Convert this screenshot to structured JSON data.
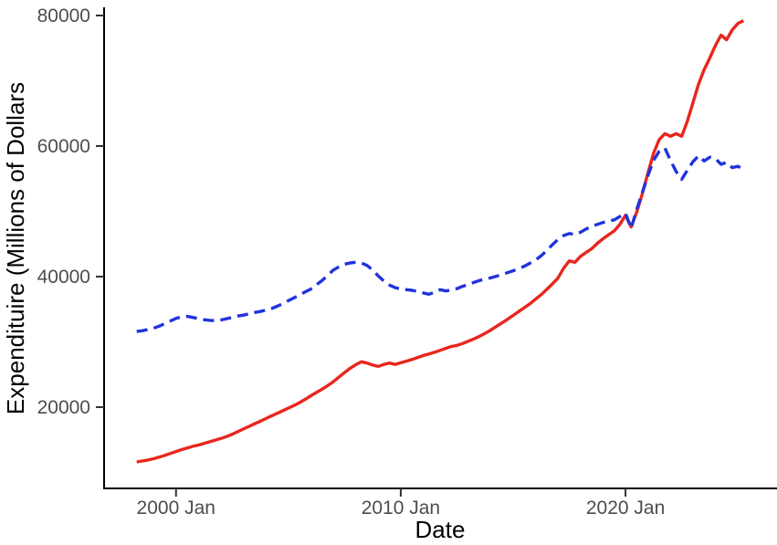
{
  "colors": {
    "background": "#ffffff",
    "axis_line": "#000000",
    "tick_mark": "#333333",
    "tick_label": "#4d4d4d",
    "axis_title": "#000000",
    "red_series": "#e8261d",
    "blue_series": "#2133dd"
  },
  "chart_data": {
    "type": "line",
    "title": "",
    "xlabel": "Date",
    "ylabel": "Expendituire (Millions of Dollars",
    "grid": false,
    "legend": "none",
    "x_unit": "decimal_year",
    "x_domain": [
      1996.8,
      2026.7
    ],
    "y_domain": [
      7550,
      81260
    ],
    "x_ticks": [
      {
        "value": 2000,
        "label": "2000 Jan"
      },
      {
        "value": 2010,
        "label": "2010 Jan"
      },
      {
        "value": 2020,
        "label": "2020 Jan"
      }
    ],
    "y_ticks": [
      {
        "value": 20000,
        "label": "20000"
      },
      {
        "value": 40000,
        "label": "40000"
      },
      {
        "value": 60000,
        "label": "60000"
      },
      {
        "value": 80000,
        "label": "80000"
      }
    ],
    "x": [
      1998.25,
      1998.5,
      1998.75,
      1999,
      1999.25,
      1999.5,
      1999.75,
      2000,
      2000.25,
      2000.5,
      2000.75,
      2001,
      2001.25,
      2001.5,
      2001.75,
      2002,
      2002.25,
      2002.5,
      2002.75,
      2003,
      2003.25,
      2003.5,
      2003.75,
      2004,
      2004.25,
      2004.5,
      2004.75,
      2005,
      2005.25,
      2005.5,
      2005.75,
      2006,
      2006.25,
      2006.5,
      2006.75,
      2007,
      2007.25,
      2007.5,
      2007.75,
      2008,
      2008.25,
      2008.5,
      2008.75,
      2009,
      2009.25,
      2009.5,
      2009.75,
      2010,
      2010.25,
      2010.5,
      2010.75,
      2011,
      2011.25,
      2011.5,
      2011.75,
      2012,
      2012.25,
      2012.5,
      2012.75,
      2013,
      2013.25,
      2013.5,
      2013.75,
      2014,
      2014.25,
      2014.5,
      2014.75,
      2015,
      2015.25,
      2015.5,
      2015.75,
      2016,
      2016.25,
      2016.5,
      2016.75,
      2017,
      2017.25,
      2017.5,
      2017.75,
      2018,
      2018.25,
      2018.5,
      2018.75,
      2019,
      2019.25,
      2019.5,
      2019.75,
      2020,
      2020.25,
      2020.5,
      2020.75,
      2021,
      2021.25,
      2021.5,
      2021.75,
      2022,
      2022.25,
      2022.5,
      2022.75,
      2023,
      2023.25,
      2023.5,
      2023.75,
      2024,
      2024.25,
      2024.5,
      2024.75,
      2025,
      2025.25
    ],
    "series": [
      {
        "name": "red-solid",
        "color": "#e8261d",
        "dash": "none",
        "width": 3.4,
        "values": [
          11600,
          11750,
          11900,
          12100,
          12350,
          12600,
          12900,
          13200,
          13500,
          13750,
          14000,
          14200,
          14450,
          14700,
          14950,
          15200,
          15500,
          15850,
          16250,
          16650,
          17050,
          17450,
          17850,
          18250,
          18650,
          19050,
          19450,
          19850,
          20250,
          20700,
          21200,
          21750,
          22250,
          22750,
          23300,
          23900,
          24600,
          25300,
          25950,
          26500,
          26950,
          26750,
          26450,
          26250,
          26550,
          26750,
          26550,
          26800,
          27050,
          27300,
          27600,
          27900,
          28150,
          28400,
          28700,
          29000,
          29300,
          29450,
          29750,
          30100,
          30450,
          30850,
          31300,
          31800,
          32350,
          32900,
          33450,
          34050,
          34650,
          35250,
          35850,
          36550,
          37250,
          38050,
          38900,
          39800,
          41300,
          42400,
          42200,
          43100,
          43700,
          44300,
          45100,
          45800,
          46400,
          47000,
          48000,
          49400,
          47600,
          49900,
          52700,
          55900,
          58900,
          61000,
          61900,
          61500,
          61900,
          61500,
          63800,
          66600,
          69500,
          71700,
          73500,
          75400,
          77000,
          76300,
          77800,
          78800,
          79200
        ]
      },
      {
        "name": "blue-dashed",
        "color": "#2133dd",
        "dash": "12 7",
        "width": 3.4,
        "values": [
          31600,
          31700,
          31900,
          32100,
          32400,
          32800,
          33200,
          33600,
          33850,
          33900,
          33750,
          33550,
          33400,
          33300,
          33250,
          33350,
          33550,
          33750,
          33950,
          34100,
          34300,
          34500,
          34650,
          34850,
          35100,
          35450,
          35850,
          36300,
          36750,
          37200,
          37650,
          38100,
          38750,
          39400,
          40200,
          41000,
          41500,
          41900,
          42100,
          42200,
          42100,
          41700,
          41000,
          40100,
          39300,
          38700,
          38300,
          38100,
          38000,
          37900,
          37700,
          37500,
          37300,
          37600,
          38000,
          37800,
          37950,
          38150,
          38500,
          38800,
          39100,
          39400,
          39600,
          39800,
          40050,
          40300,
          40600,
          40900,
          41200,
          41600,
          42050,
          42550,
          43200,
          44000,
          44900,
          45700,
          46300,
          46600,
          46450,
          46800,
          47300,
          47700,
          48000,
          48300,
          48500,
          48700,
          49200,
          49700,
          47400,
          50300,
          52900,
          55500,
          57800,
          59200,
          59700,
          57800,
          56100,
          54900,
          56300,
          57600,
          58500,
          57700,
          58300,
          58100,
          57200,
          57500,
          56700,
          56900,
          56400
        ]
      }
    ]
  }
}
